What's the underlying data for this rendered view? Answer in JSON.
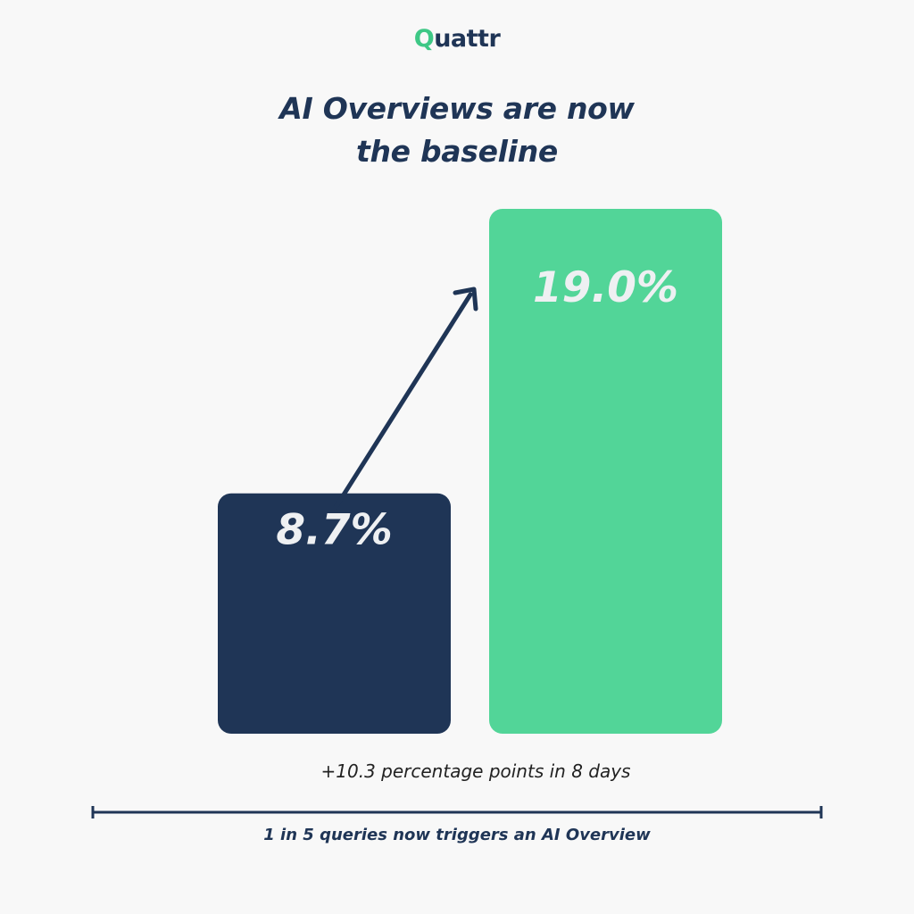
{
  "brand": {
    "logo_q": "Q",
    "logo_rest": "uattr",
    "primary_color": "#1f3556",
    "accent_color": "#52d598"
  },
  "chart_data": {
    "type": "bar",
    "title_line1": "AI Overviews are now",
    "title_line2": "the baseline",
    "categories": [
      "",
      ""
    ],
    "values": [
      8.7,
      19.0
    ],
    "value_labels": [
      "8.7%",
      "19.0%"
    ],
    "colors": [
      "#1f3556",
      "#52d598"
    ],
    "ylim": [
      0,
      20
    ],
    "grid": false,
    "annotation": "+10.3 percentage points in 8 days",
    "footnote": "1 in 5 queries now triggers an AI Overview"
  }
}
